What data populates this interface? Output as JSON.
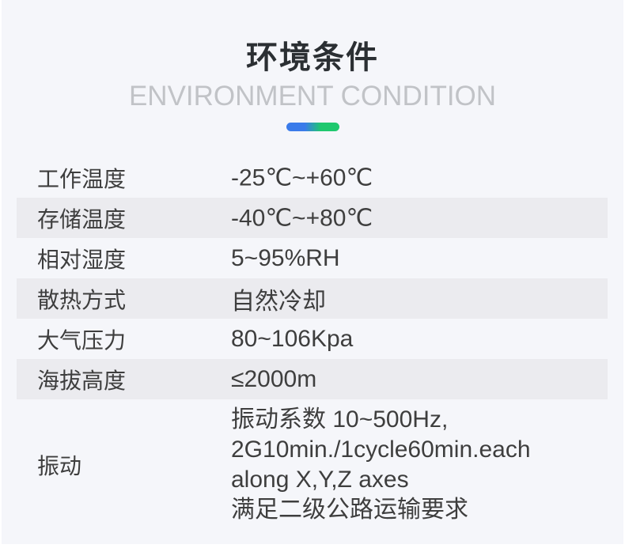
{
  "header": {
    "title": "环境条件",
    "subtitle": "ENVIRONMENT CONDITION",
    "accent_gradient": [
      "#3a7bea",
      "#1fc86e"
    ]
  },
  "rows": [
    {
      "label": "工作温度",
      "value": "-25℃~+60℃"
    },
    {
      "label": "存储温度",
      "value": "-40℃~+80℃"
    },
    {
      "label": "相对湿度",
      "value": "5~95%RH"
    },
    {
      "label": "散热方式",
      "value": "自然冷却"
    },
    {
      "label": "大气压力",
      "value": "80~106Kpa"
    },
    {
      "label": "海拔高度",
      "value": "≤2000m"
    },
    {
      "label": "振动",
      "lines": [
        "振动系数 10~500Hz,",
        "2G10min./1cycle60min.each",
        "along X,Y,Z axes",
        "满足二级公路运输要求"
      ]
    }
  ]
}
